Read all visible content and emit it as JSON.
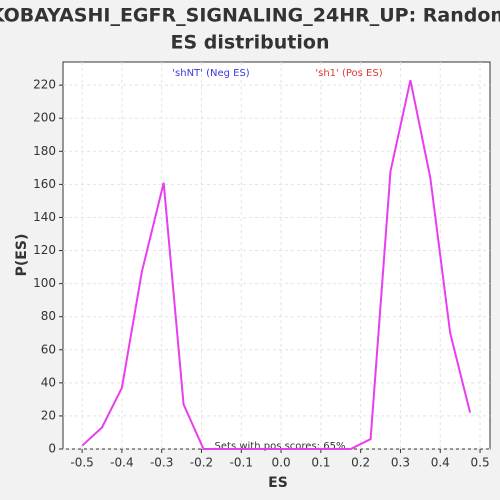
{
  "chart_data": {
    "type": "line",
    "title": [
      "KOBAYASHI_EGFR_SIGNALING_24HR_UP: Random",
      "ES distribution"
    ],
    "xlabel": "ES",
    "ylabel": "P(ES)",
    "annotations": {
      "neg": "'shNT' (Neg ES)",
      "pos": "'sh1' (Pos ES)",
      "footer": "Sets with pos scores: 65%"
    },
    "annotation_colors": {
      "neg": "#3a3ae0",
      "pos": "#e03a3a"
    },
    "x": [
      -0.5,
      -0.45,
      -0.4,
      -0.35,
      -0.295,
      -0.245,
      -0.195,
      0.175,
      0.225,
      0.275,
      0.325,
      0.375,
      0.425,
      0.475
    ],
    "series": [
      {
        "name": "P(ES)",
        "color": "#e83ef0",
        "values": [
          2,
          13,
          37,
          107,
          161,
          27,
          0,
          0,
          6,
          168,
          223,
          164,
          70,
          22
        ]
      }
    ],
    "xlim": [
      -0.548,
      0.525
    ],
    "ylim": [
      0,
      234
    ],
    "xticks": [
      -0.5,
      -0.4,
      -0.3,
      -0.2,
      -0.1,
      {
        "value": 0,
        "label": "0.0"
      },
      0.1,
      0.2,
      0.3,
      0.4,
      0.5
    ],
    "yticks": [
      0,
      20,
      40,
      60,
      80,
      100,
      120,
      140,
      160,
      180,
      200,
      220
    ],
    "grid": true
  }
}
